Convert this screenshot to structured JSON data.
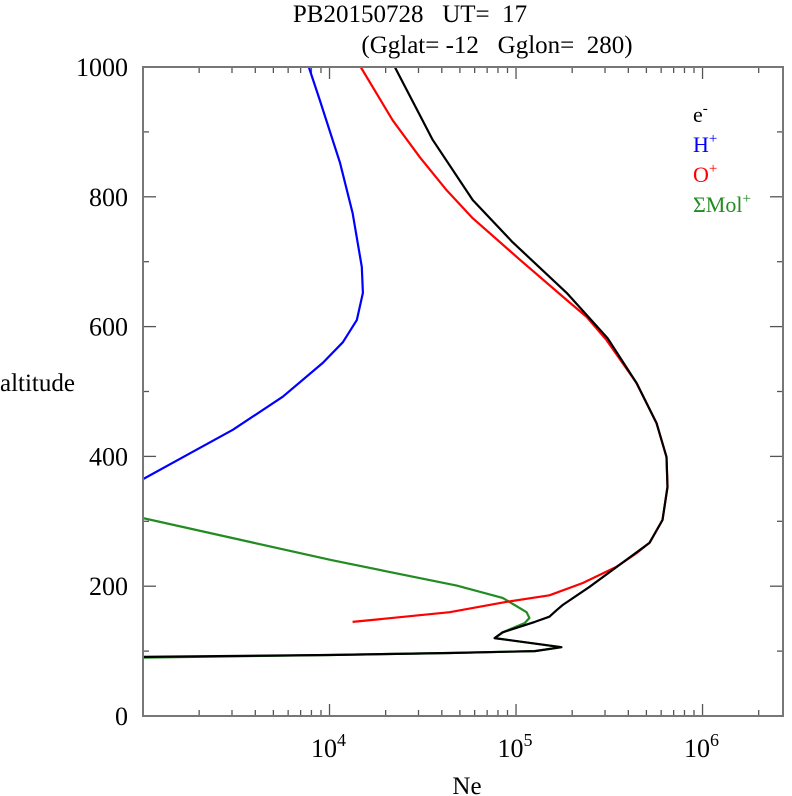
{
  "chart_data": {
    "type": "line",
    "title_line1": "PB20150728   UT=  17",
    "title_line2": "(Gglat= -12   Gglon=  280)",
    "xlabel": "Ne",
    "ylabel": "altitude",
    "xscale": "log",
    "xlim": [
      1000,
      2700000
    ],
    "ylim": [
      0,
      1000
    ],
    "xticks": [
      {
        "value": 10000,
        "base": "10",
        "exp": "4"
      },
      {
        "value": 100000,
        "base": "10",
        "exp": "5"
      },
      {
        "value": 1000000,
        "base": "10",
        "exp": "6"
      }
    ],
    "yticks": [
      {
        "value": 0,
        "label": "0"
      },
      {
        "value": 200,
        "label": "200"
      },
      {
        "value": 400,
        "label": "400"
      },
      {
        "value": 600,
        "label": "600"
      },
      {
        "value": 800,
        "label": "800"
      },
      {
        "value": 1000,
        "label": "1000"
      }
    ],
    "legend_position": "top-right",
    "series": [
      {
        "name": "e-",
        "label_base": "e",
        "label_sup": "-",
        "color": "#000000",
        "points": [
          [
            22400,
            1000
          ],
          [
            35700,
            888
          ],
          [
            58600,
            795
          ],
          [
            95900,
            730
          ],
          [
            187000,
            652
          ],
          [
            248000,
            613
          ],
          [
            310000,
            582
          ],
          [
            443000,
            513
          ],
          [
            567000,
            451
          ],
          [
            641000,
            399
          ],
          [
            649000,
            353
          ],
          [
            610000,
            302
          ],
          [
            520000,
            267
          ],
          [
            372000,
            236
          ],
          [
            248000,
            199
          ],
          [
            178000,
            171
          ],
          [
            165000,
            163
          ],
          [
            151000,
            153
          ],
          [
            126000,
            145
          ],
          [
            84800,
            129
          ],
          [
            76800,
            120
          ],
          [
            175000,
            106
          ],
          [
            126000,
            100
          ],
          [
            44100,
            97
          ],
          [
            10000,
            94
          ],
          [
            1000,
            91
          ]
        ]
      },
      {
        "name": "H+",
        "label_base": "H",
        "label_sup": "+",
        "color": "#0000ff",
        "points": [
          [
            7740,
            1000
          ],
          [
            8870,
            949
          ],
          [
            11400,
            852
          ],
          [
            13300,
            775
          ],
          [
            14900,
            692
          ],
          [
            15100,
            652
          ],
          [
            14000,
            610
          ],
          [
            11800,
            576
          ],
          [
            9200,
            544
          ],
          [
            5620,
            492
          ],
          [
            3030,
            441
          ],
          [
            1790,
            405
          ],
          [
            1000,
            365
          ]
        ]
      },
      {
        "name": "O+",
        "label_base": "O",
        "label_sup": "+",
        "color": "#ff0000",
        "points": [
          [
            14700,
            1000
          ],
          [
            21800,
            918
          ],
          [
            30500,
            861
          ],
          [
            42500,
            810
          ],
          [
            58600,
            767
          ],
          [
            105000,
            703
          ],
          [
            187000,
            641
          ],
          [
            239000,
            615
          ],
          [
            306000,
            579
          ],
          [
            443000,
            513
          ],
          [
            567000,
            451
          ],
          [
            641000,
            399
          ],
          [
            649000,
            353
          ],
          [
            610000,
            302
          ],
          [
            520000,
            267
          ],
          [
            443000,
            251
          ],
          [
            346000,
            230
          ],
          [
            228000,
            205
          ],
          [
            151000,
            186
          ],
          [
            89100,
            176
          ],
          [
            44100,
            160
          ],
          [
            13300,
            145
          ]
        ]
      },
      {
        "name": "ΣMol+",
        "label_base": "ΣMol",
        "label_sup": "+",
        "color": "#228b22",
        "points": [
          [
            1000,
            305
          ],
          [
            10300,
            240
          ],
          [
            48100,
            201
          ],
          [
            84800,
            182
          ],
          [
            114000,
            160
          ],
          [
            118000,
            151
          ],
          [
            111000,
            143
          ],
          [
            84800,
            129
          ],
          [
            76800,
            120
          ],
          [
            175000,
            106
          ],
          [
            126000,
            100
          ],
          [
            44100,
            97
          ],
          [
            10000,
            94
          ],
          [
            1000,
            90
          ]
        ]
      }
    ]
  }
}
